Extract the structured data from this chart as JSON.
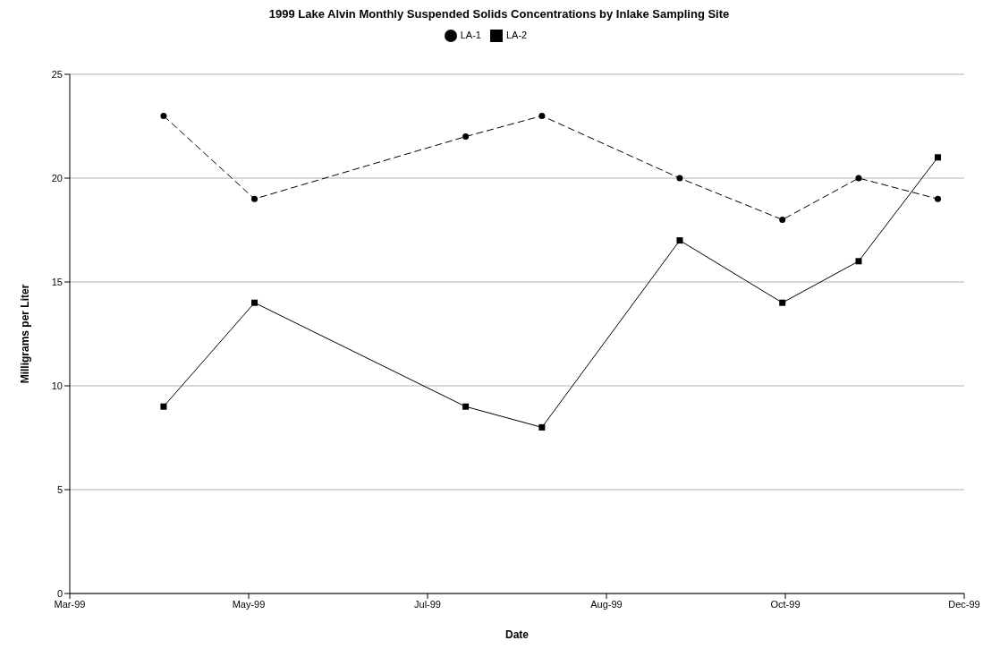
{
  "chart_data": {
    "type": "line",
    "title": "1999 Lake Alvin Monthly Suspended Solids Concentrations by Inlake Sampling Site",
    "xlabel": "Date",
    "ylabel": "Milligrams per Liter",
    "x": [
      "1999-04-02",
      "1999-05-03",
      "1999-07-14",
      "1999-08-09",
      "1999-09-25",
      "1999-10-30",
      "1999-11-25",
      "1999-12-22"
    ],
    "series": [
      {
        "name": "LA-1",
        "color": "#000000",
        "values": [
          23,
          19,
          22,
          23,
          20,
          18,
          20,
          19
        ],
        "marker": "circle",
        "line_style": "dashed"
      },
      {
        "name": "LA-2",
        "color": "#000000",
        "values": [
          9,
          14,
          9,
          8,
          17,
          14,
          16,
          21
        ],
        "marker": "square",
        "line_style": "solid"
      }
    ],
    "xlim": [
      "1999-03-01",
      "1999-12-31"
    ],
    "xticks": [
      {
        "value": "1999-03-01",
        "label": "Mar-99"
      },
      {
        "value": "1999-05-01",
        "label": "May-99"
      },
      {
        "value": "1999-07-01",
        "label": "Jul-99"
      },
      {
        "value": "1999-08-31",
        "label": "Aug-99"
      },
      {
        "value": "1999-10-31",
        "label": "Oct-99"
      },
      {
        "value": "1999-12-31",
        "label": "Dec-99"
      }
    ],
    "ylim": [
      0,
      25
    ],
    "yticks": [
      0,
      5,
      10,
      15,
      20,
      25
    ],
    "grid": "y",
    "legend": "top"
  }
}
